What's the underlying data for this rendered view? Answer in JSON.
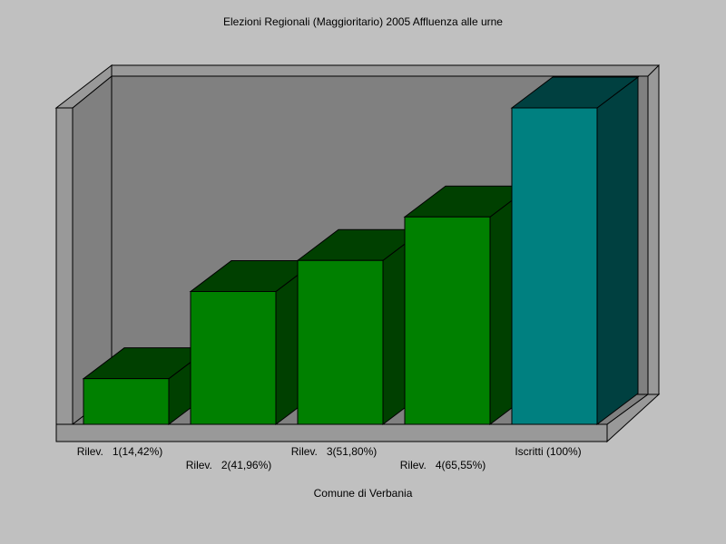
{
  "chart_data": {
    "type": "bar",
    "title": "Elezioni Regionali (Maggioritario) 2005 Affluenza alle urne",
    "xlabel": "Comune di Verbania",
    "ylabel": "",
    "categories": [
      "Rilev.   1(14,42%)",
      "Rilev.   2(41,96%)",
      "Rilev.   3(51,80%)",
      "Rilev.   4(65,55%)",
      "Iscritti (100%)"
    ],
    "values": [
      14.42,
      41.96,
      51.8,
      65.55,
      100
    ],
    "ylim": [
      0,
      100
    ],
    "grid": false,
    "colors": {
      "background": "#c0c0c0",
      "wall": "#808080",
      "frame": "#999999",
      "bar_front": "#008000",
      "bar_side": "#004000",
      "highlight_front": "#008080",
      "highlight_side": "#004040"
    }
  }
}
